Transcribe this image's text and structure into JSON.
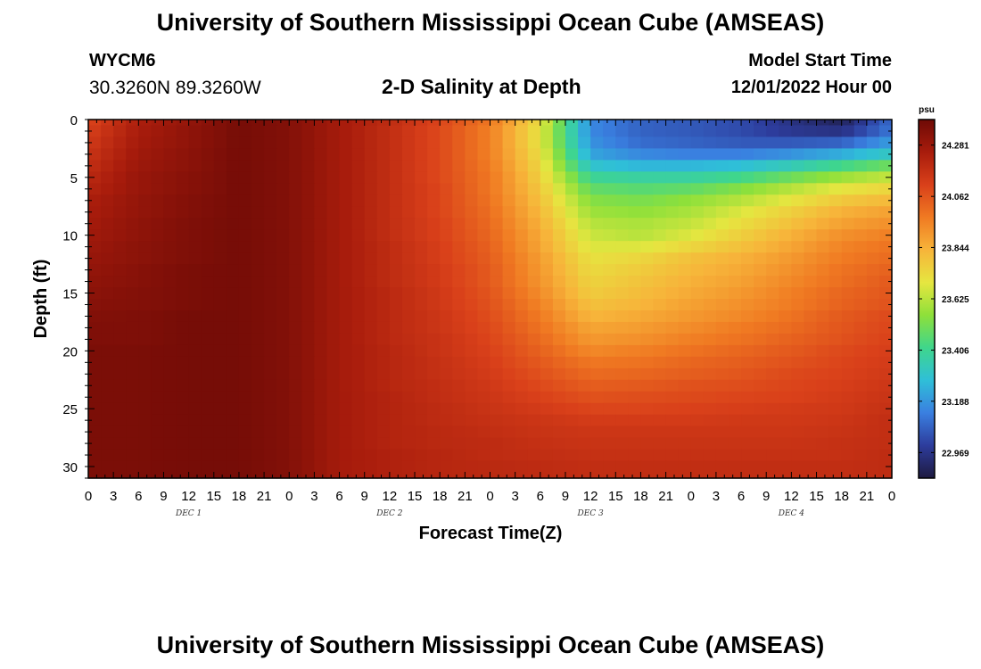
{
  "header": {
    "title": "University of Southern Mississippi Ocean Cube (AMSEAS)",
    "station": "WYCM6",
    "coords": "30.3260N  89.3260W",
    "subtitle": "2-D Salinity at Depth",
    "start_label": "Model Start Time",
    "start_date": "12/01/2022 Hour 00"
  },
  "footer": {
    "title": "University of Southern Mississippi Ocean Cube (AMSEAS)"
  },
  "chart_data": {
    "type": "heatmap",
    "title": "2-D Salinity at Depth",
    "xlabel": "Forecast Time(Z)",
    "ylabel": "Depth (ft)",
    "x_tick_labels": [
      "0",
      "3",
      "6",
      "9",
      "12",
      "15",
      "18",
      "21",
      "0",
      "3",
      "6",
      "9",
      "12",
      "15",
      "18",
      "21",
      "0",
      "3",
      "6",
      "9",
      "12",
      "15",
      "18",
      "21",
      "0",
      "3",
      "6",
      "9",
      "12",
      "15",
      "18",
      "21",
      "0"
    ],
    "x_range_hours": [
      0,
      96
    ],
    "x_step_hours": 3,
    "day_labels": [
      {
        "label": "DEC 1",
        "hour": 12
      },
      {
        "label": "DEC 2",
        "hour": 36
      },
      {
        "label": "DEC 3",
        "hour": 60
      },
      {
        "label": "DEC 4",
        "hour": 84
      }
    ],
    "y_ticks": [
      0,
      5,
      10,
      15,
      20,
      25,
      30
    ],
    "y_range": [
      0,
      31
    ],
    "y_inverted": true,
    "colorbar": {
      "unit": "psu",
      "ticks": [
        "24.281",
        "24.062",
        "23.844",
        "23.625",
        "23.406",
        "23.188",
        "22.969"
      ],
      "min": 22.86,
      "max": 24.39,
      "colors": [
        "#1e1a40",
        "#2d3c9c",
        "#3a7fe0",
        "#2fbfd8",
        "#3fd68c",
        "#8ee03a",
        "#e6e640",
        "#f7b43a",
        "#f07a22",
        "#d9401a",
        "#a81c0c",
        "#6e0a06"
      ]
    },
    "depth_levels_ft": [
      0,
      1,
      2,
      3,
      4,
      5,
      6,
      7,
      8,
      9,
      10,
      11,
      12,
      13,
      14,
      15,
      16,
      17,
      18,
      19,
      20,
      21,
      22,
      23,
      24,
      25,
      26,
      27,
      28,
      29,
      30
    ],
    "profile_hours": [
      0,
      6,
      12,
      18,
      24,
      30,
      36,
      42,
      48,
      54,
      60,
      66,
      72,
      78,
      84,
      90,
      96
    ],
    "salinity_psu": [
      [
        24.1,
        24.24,
        24.3,
        24.37,
        24.34,
        24.26,
        24.19,
        24.1,
        23.98,
        23.72,
        23.16,
        23.08,
        23.06,
        23.03,
        22.96,
        22.9,
        23.1
      ],
      [
        24.12,
        24.25,
        24.31,
        24.37,
        24.34,
        24.26,
        24.18,
        24.09,
        23.96,
        23.7,
        23.16,
        23.08,
        23.06,
        23.03,
        22.98,
        22.96,
        23.12
      ],
      [
        24.14,
        24.26,
        24.31,
        24.37,
        24.34,
        24.26,
        24.18,
        24.09,
        23.96,
        23.7,
        23.18,
        23.1,
        23.08,
        23.06,
        23.06,
        23.08,
        23.2
      ],
      [
        24.16,
        24.27,
        24.32,
        24.37,
        24.34,
        24.26,
        24.18,
        24.09,
        23.96,
        23.72,
        23.22,
        23.16,
        23.14,
        23.14,
        23.18,
        23.24,
        23.32
      ],
      [
        24.18,
        24.28,
        24.32,
        24.37,
        24.34,
        24.26,
        24.18,
        24.09,
        23.97,
        23.74,
        23.3,
        23.26,
        23.26,
        23.28,
        23.34,
        23.42,
        23.5
      ],
      [
        24.2,
        24.29,
        24.33,
        24.37,
        24.34,
        24.26,
        24.18,
        24.09,
        23.98,
        23.76,
        23.4,
        23.38,
        23.38,
        23.42,
        23.5,
        23.58,
        23.64
      ],
      [
        24.22,
        24.29,
        24.33,
        24.37,
        24.34,
        24.26,
        24.18,
        24.1,
        23.98,
        23.78,
        23.48,
        23.46,
        23.48,
        23.54,
        23.62,
        23.7,
        23.74
      ],
      [
        24.24,
        24.3,
        24.34,
        24.37,
        24.34,
        24.26,
        24.18,
        24.1,
        23.99,
        23.8,
        23.54,
        23.52,
        23.56,
        23.62,
        23.7,
        23.78,
        23.82
      ],
      [
        24.25,
        24.3,
        24.34,
        24.37,
        24.34,
        24.26,
        24.18,
        24.1,
        24.0,
        23.82,
        23.58,
        23.56,
        23.6,
        23.68,
        23.76,
        23.84,
        23.88
      ],
      [
        24.26,
        24.31,
        24.35,
        24.37,
        24.34,
        24.26,
        24.18,
        24.11,
        24.01,
        23.84,
        23.62,
        23.6,
        23.64,
        23.72,
        23.8,
        23.88,
        23.92
      ],
      [
        24.27,
        24.31,
        24.35,
        24.37,
        24.34,
        24.26,
        24.18,
        24.11,
        24.02,
        23.86,
        23.65,
        23.62,
        23.68,
        23.76,
        23.84,
        23.92,
        23.96
      ],
      [
        24.28,
        24.32,
        24.35,
        24.37,
        24.34,
        24.26,
        24.19,
        24.12,
        24.03,
        23.87,
        23.68,
        23.68,
        23.74,
        23.8,
        23.87,
        23.95,
        23.99
      ],
      [
        24.29,
        24.32,
        24.35,
        24.37,
        24.34,
        24.26,
        24.19,
        24.12,
        24.04,
        23.89,
        23.71,
        23.74,
        23.8,
        23.84,
        23.9,
        23.97,
        24.01
      ],
      [
        24.3,
        24.33,
        24.36,
        24.37,
        24.34,
        24.26,
        24.19,
        24.13,
        24.05,
        23.9,
        23.73,
        23.77,
        23.82,
        23.86,
        23.92,
        23.99,
        24.03
      ],
      [
        24.31,
        24.33,
        24.36,
        24.37,
        24.34,
        24.26,
        24.19,
        24.13,
        24.05,
        23.91,
        23.75,
        23.79,
        23.84,
        23.88,
        23.94,
        24.0,
        24.05
      ],
      [
        24.32,
        24.34,
        24.36,
        24.37,
        24.34,
        24.26,
        24.2,
        24.14,
        24.06,
        23.93,
        23.77,
        23.81,
        23.86,
        23.9,
        23.96,
        24.02,
        24.06
      ],
      [
        24.33,
        24.34,
        24.36,
        24.37,
        24.34,
        24.26,
        24.2,
        24.14,
        24.07,
        23.95,
        23.8,
        23.83,
        23.88,
        23.92,
        23.97,
        24.03,
        24.07
      ],
      [
        24.34,
        24.35,
        24.37,
        24.37,
        24.34,
        24.26,
        24.2,
        24.15,
        24.08,
        23.97,
        23.83,
        23.86,
        23.9,
        23.94,
        23.99,
        24.05,
        24.09
      ],
      [
        24.35,
        24.35,
        24.37,
        24.37,
        24.34,
        24.26,
        24.2,
        24.15,
        24.09,
        23.99,
        23.87,
        23.89,
        23.93,
        23.97,
        24.01,
        24.06,
        24.1
      ],
      [
        24.35,
        24.35,
        24.37,
        24.37,
        24.34,
        24.26,
        24.2,
        24.16,
        24.1,
        24.01,
        23.9,
        23.92,
        23.96,
        23.99,
        24.03,
        24.07,
        24.11
      ],
      [
        24.36,
        24.36,
        24.37,
        24.37,
        24.34,
        24.26,
        24.21,
        24.16,
        24.11,
        24.03,
        23.94,
        23.96,
        23.99,
        24.02,
        24.05,
        24.09,
        24.12
      ],
      [
        24.36,
        24.36,
        24.37,
        24.37,
        24.34,
        24.26,
        24.21,
        24.17,
        24.12,
        24.05,
        23.98,
        23.99,
        24.02,
        24.04,
        24.07,
        24.1,
        24.13
      ],
      [
        24.36,
        24.36,
        24.37,
        24.37,
        24.34,
        24.26,
        24.21,
        24.17,
        24.13,
        24.07,
        24.01,
        24.02,
        24.04,
        24.06,
        24.09,
        24.11,
        24.14
      ],
      [
        24.36,
        24.36,
        24.37,
        24.37,
        24.34,
        24.26,
        24.21,
        24.18,
        24.14,
        24.09,
        24.04,
        24.05,
        24.07,
        24.08,
        24.1,
        24.12,
        24.15
      ],
      [
        24.36,
        24.36,
        24.37,
        24.37,
        24.34,
        24.26,
        24.22,
        24.18,
        24.15,
        24.11,
        24.07,
        24.08,
        24.09,
        24.1,
        24.11,
        24.13,
        24.16
      ],
      [
        24.36,
        24.36,
        24.37,
        24.37,
        24.34,
        24.26,
        24.22,
        24.19,
        24.16,
        24.13,
        24.1,
        24.1,
        24.11,
        24.12,
        24.13,
        24.14,
        24.17
      ],
      [
        24.36,
        24.36,
        24.37,
        24.37,
        24.34,
        24.26,
        24.22,
        24.19,
        24.17,
        24.15,
        24.13,
        24.13,
        24.13,
        24.14,
        24.14,
        24.15,
        24.18
      ],
      [
        24.36,
        24.36,
        24.37,
        24.37,
        24.34,
        24.26,
        24.22,
        24.2,
        24.18,
        24.16,
        24.15,
        24.15,
        24.15,
        24.15,
        24.15,
        24.16,
        24.18
      ],
      [
        24.36,
        24.36,
        24.37,
        24.37,
        24.34,
        24.26,
        24.22,
        24.2,
        24.19,
        24.17,
        24.16,
        24.16,
        24.16,
        24.16,
        24.16,
        24.17,
        24.18
      ],
      [
        24.36,
        24.36,
        24.37,
        24.37,
        24.34,
        24.26,
        24.23,
        24.21,
        24.19,
        24.18,
        24.17,
        24.17,
        24.17,
        24.17,
        24.17,
        24.17,
        24.19
      ],
      [
        24.36,
        24.36,
        24.37,
        24.37,
        24.34,
        24.26,
        24.23,
        24.21,
        24.2,
        24.19,
        24.18,
        24.18,
        24.18,
        24.18,
        24.18,
        24.18,
        24.19
      ]
    ]
  }
}
